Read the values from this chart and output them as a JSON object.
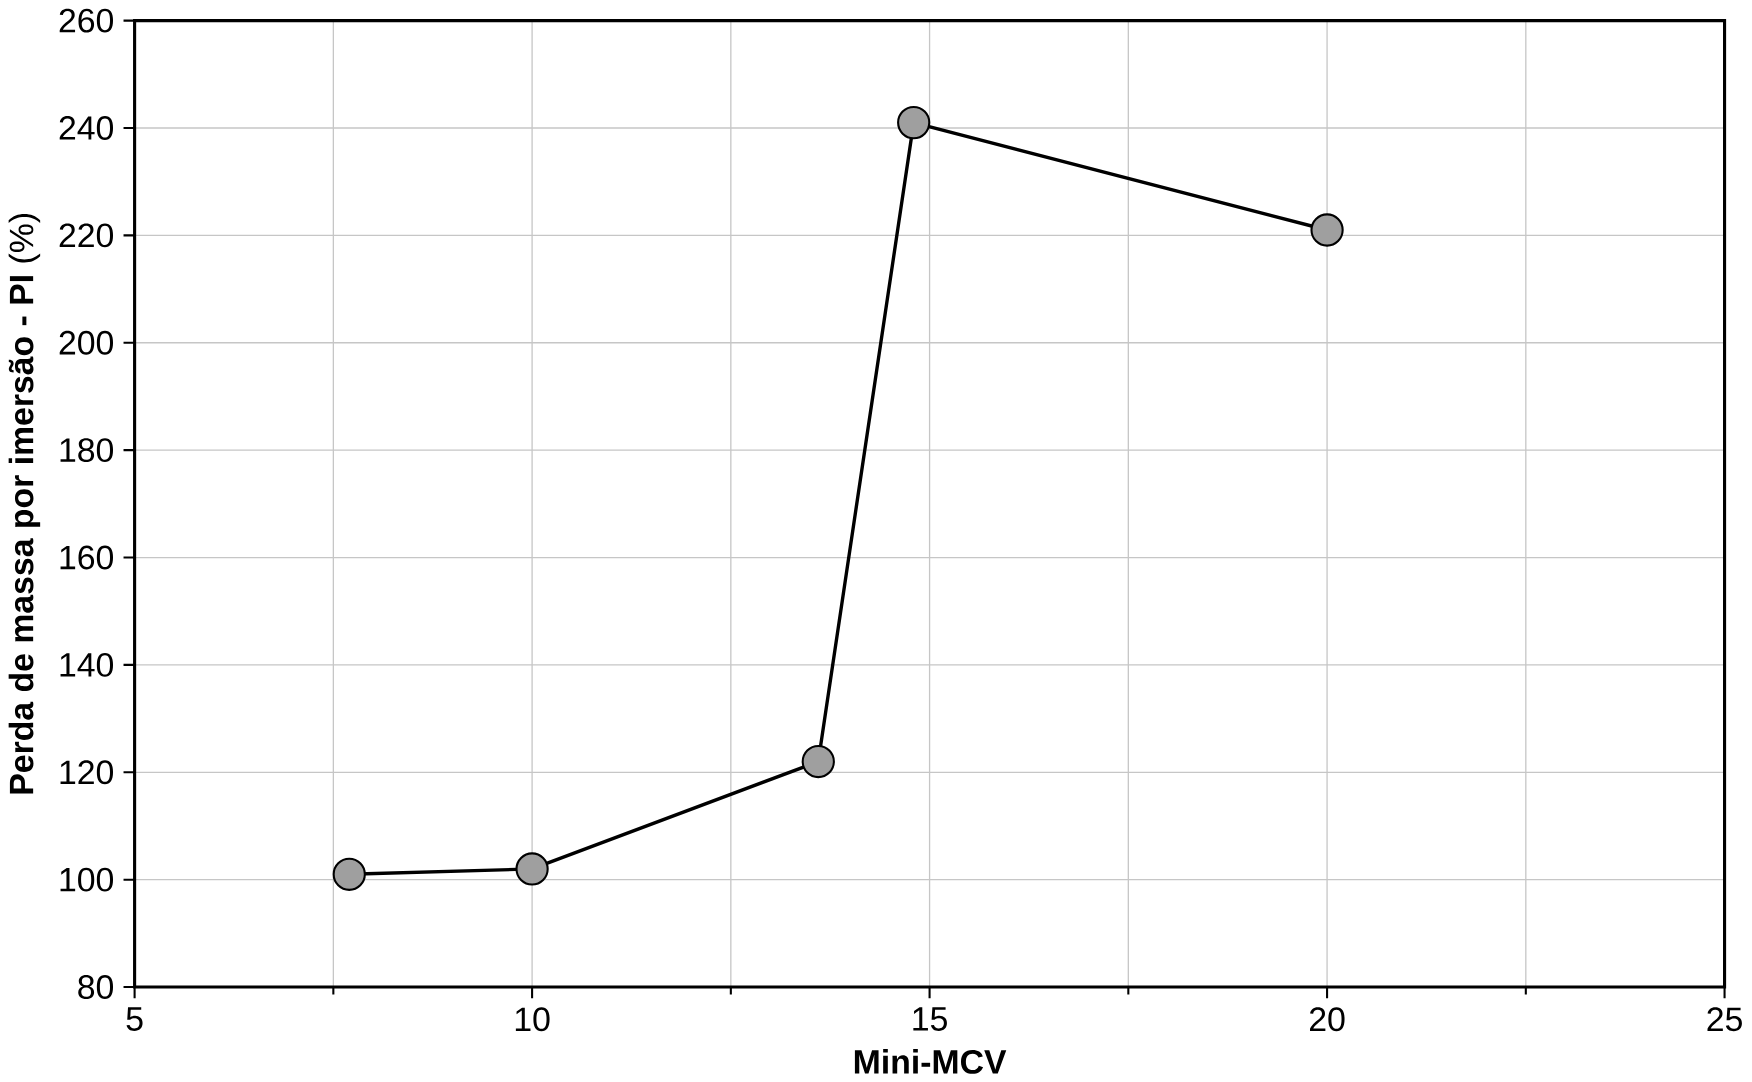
{
  "chart_data": {
    "type": "line",
    "xlabel": "Mini-MCV",
    "ylabel": "**Perda de massa por imersão  - PI** (%)",
    "x": [
      7.7,
      10,
      13.6,
      14.8,
      20
    ],
    "series": [
      {
        "color": "#000000",
        "values": [
          101,
          102,
          122,
          241,
          221
        ]
      }
    ],
    "xlim": [
      5,
      25
    ],
    "xticks": [
      5,
      10,
      15,
      20,
      25
    ],
    "ylim": [
      80,
      260
    ],
    "yticks": [
      80,
      100,
      120,
      140,
      160,
      180,
      200,
      220,
      240,
      260
    ],
    "grid": true,
    "marker": "circle",
    "line_style": "solid"
  }
}
